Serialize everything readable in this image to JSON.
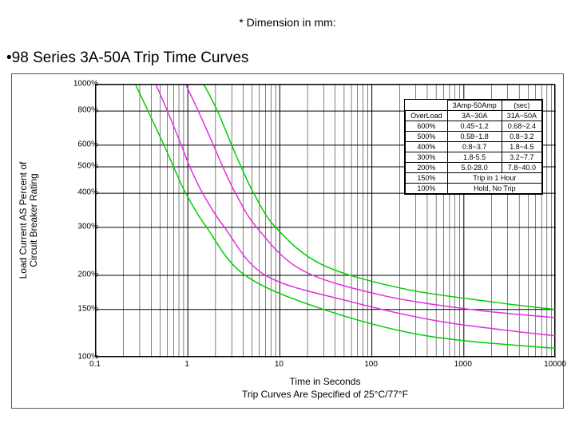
{
  "top_note": "* Dimension in mm:",
  "title": "•98 Series 3A-50A Trip Time Curves",
  "chart": {
    "type": "line",
    "xlabel": "Time in Seconds",
    "ylabel_line1": "Load Current AS Percent of",
    "ylabel_line2": "Circuit Breaker Rating",
    "subtitle_bottom": "Trip Curves Are Specified of 25°C/77°F",
    "xscale": "log",
    "yscale": "log",
    "xlim": [
      0.1,
      10000
    ],
    "ylim": [
      100,
      1000
    ],
    "xticks": [
      0.1,
      1,
      10,
      100,
      1000,
      10000
    ],
    "xtick_labels": [
      "0.1",
      "1",
      "10",
      "100",
      "1000",
      "10000"
    ],
    "yticks": [
      100,
      150,
      200,
      300,
      400,
      500,
      600,
      800,
      1000
    ],
    "ytick_labels": [
      "100%",
      "150%",
      "200%",
      "300%",
      "400%",
      "500%",
      "600%",
      "800%",
      "1000%"
    ],
    "grid_color": "#000000",
    "background_color": "#ffffff",
    "curve_colors": [
      "#00d000",
      "#e030e0",
      "#e030e0",
      "#00d000"
    ],
    "curve_width": 1.5,
    "curves": [
      {
        "points": [
          [
            0.27,
            1000
          ],
          [
            0.37,
            800
          ],
          [
            0.55,
            600
          ],
          [
            0.7,
            500
          ],
          [
            0.95,
            400
          ],
          [
            1.6,
            300
          ],
          [
            4.2,
            200
          ],
          [
            30,
            150
          ],
          [
            400,
            120
          ],
          [
            10000,
            108
          ]
        ]
      },
      {
        "points": [
          [
            0.45,
            1000
          ],
          [
            0.6,
            800
          ],
          [
            0.85,
            600
          ],
          [
            1.05,
            500
          ],
          [
            1.45,
            400
          ],
          [
            2.5,
            300
          ],
          [
            7.0,
            200
          ],
          [
            60,
            160
          ],
          [
            600,
            135
          ],
          [
            10000,
            120
          ]
        ]
      },
      {
        "points": [
          [
            0.95,
            1000
          ],
          [
            1.3,
            800
          ],
          [
            1.9,
            600
          ],
          [
            2.4,
            500
          ],
          [
            3.3,
            400
          ],
          [
            5.6,
            300
          ],
          [
            17,
            210
          ],
          [
            120,
            170
          ],
          [
            1200,
            150
          ],
          [
            10000,
            140
          ]
        ]
      },
      {
        "points": [
          [
            1.5,
            1000
          ],
          [
            2.1,
            800
          ],
          [
            3.0,
            600
          ],
          [
            3.8,
            500
          ],
          [
            5.2,
            400
          ],
          [
            9.0,
            300
          ],
          [
            28,
            220
          ],
          [
            200,
            180
          ],
          [
            2000,
            160
          ],
          [
            10000,
            150
          ]
        ]
      }
    ]
  },
  "legend": {
    "header": "3Amp-50Amp",
    "unit": "(sec)",
    "columns": [
      "OverLoad",
      "3A~30A",
      "31A~50A"
    ],
    "rows": [
      [
        "600%",
        "0.45~1.2",
        "0.68~2.4"
      ],
      [
        "500%",
        "0.58~1.8",
        "0.8~3.2"
      ],
      [
        "400%",
        "0.8~3.7",
        "1.8~4.5"
      ],
      [
        "300%",
        "1.8-5.5",
        "3.2~7.7"
      ],
      [
        "200%",
        "5.0-28.0",
        "7.8~40.0"
      ]
    ],
    "footer_rows": [
      [
        "150%",
        "Trip in 1 Hour"
      ],
      [
        "100%",
        "Hold, No Trip"
      ]
    ]
  }
}
